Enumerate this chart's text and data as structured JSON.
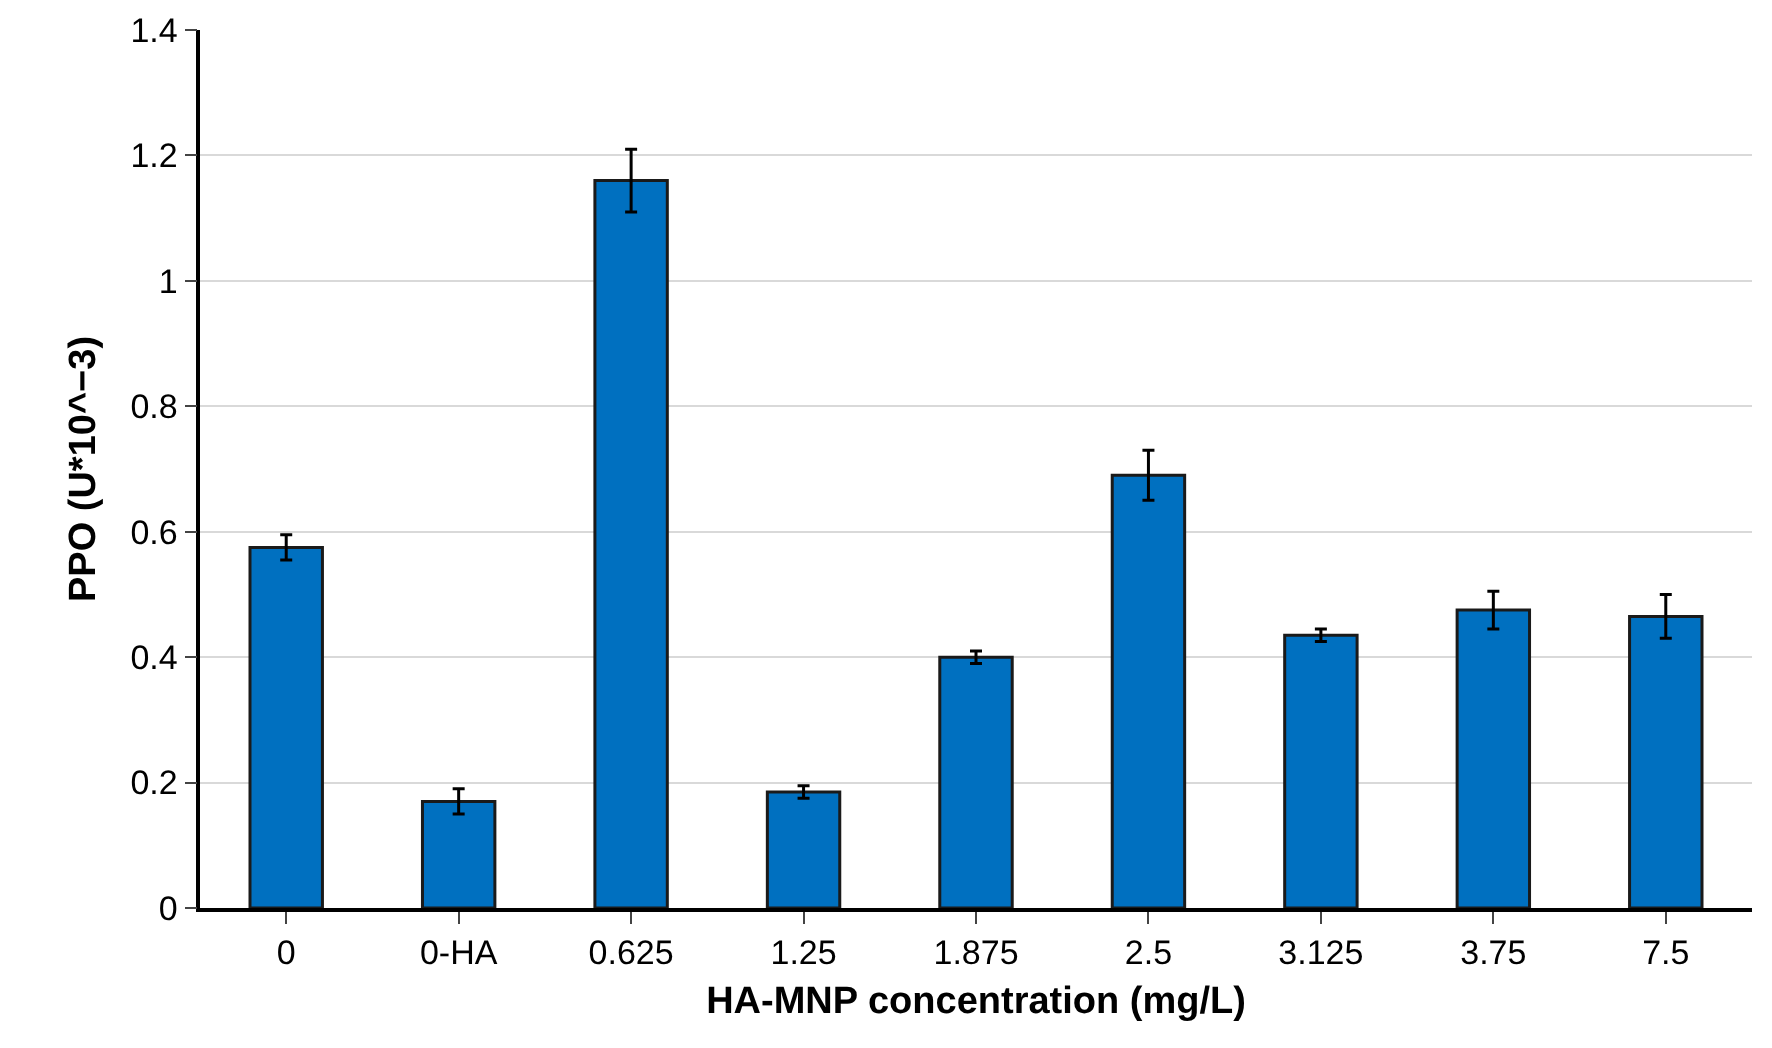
{
  "chart_data": {
    "type": "bar",
    "xlabel": "HA-MNP concentration (mg/L)",
    "ylabel": "PPO (U*10^−3)",
    "categories": [
      "0",
      "0-HA",
      "0.625",
      "1.25",
      "1.875",
      "2.5",
      "3.125",
      "3.75",
      "7.5"
    ],
    "values": [
      0.575,
      0.17,
      1.16,
      0.185,
      0.4,
      0.69,
      0.435,
      0.475,
      0.465
    ],
    "errors": [
      0.02,
      0.02,
      0.05,
      0.01,
      0.01,
      0.04,
      0.01,
      0.03,
      0.035
    ],
    "color": "#0070c0",
    "ylim": [
      0,
      1.4
    ],
    "yticks": [
      0,
      0.2,
      0.4,
      0.6,
      0.8,
      1,
      1.2,
      1.4
    ],
    "grid": "y"
  }
}
